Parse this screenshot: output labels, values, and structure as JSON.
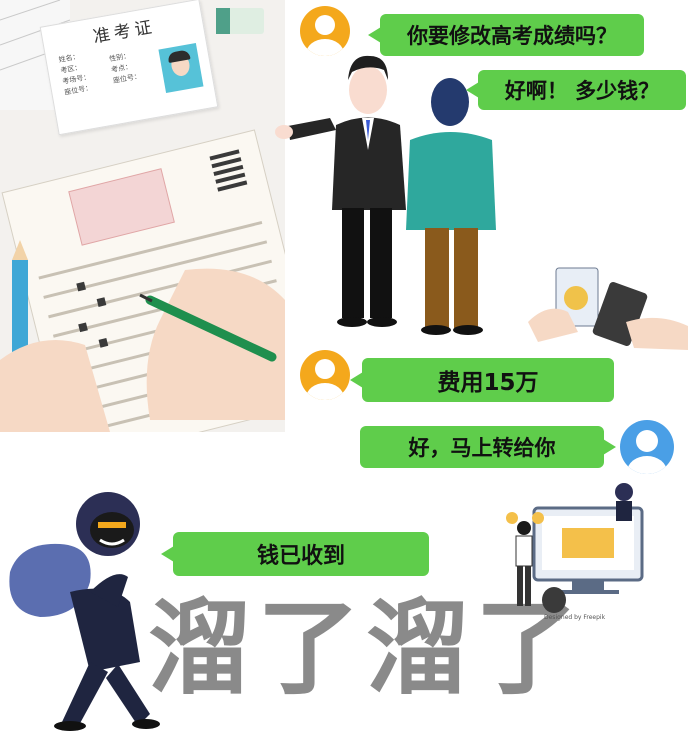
{
  "exam_card": {
    "title": "准考证",
    "fields": [
      "姓名：",
      "考区：",
      "考场号：",
      "座位号：",
      "性别：",
      "考点：",
      "座位号："
    ]
  },
  "chat": [
    {
      "side": "right",
      "text": "你要修改高考成绩吗？"
    },
    {
      "side": "right",
      "text": "好啊！ 多少钱？"
    },
    {
      "side": "right",
      "text": "费用15万"
    },
    {
      "side": "left",
      "text": "好，马上转给你"
    },
    {
      "side": "right",
      "text": "钱已收到"
    }
  ],
  "big_text": "溜了溜了",
  "credit": "Designed by Freepik",
  "colors": {
    "bubble": "#5fcd4b",
    "avatar_orange": "#f4a81c",
    "avatar_blue": "#4a9fe6",
    "big_text": "#8a8a8a"
  }
}
